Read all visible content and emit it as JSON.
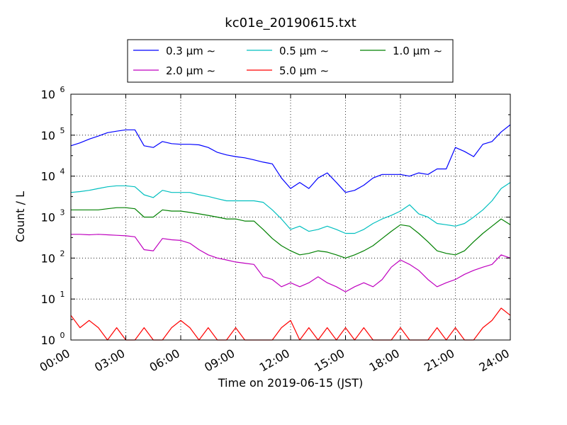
{
  "chart_data": {
    "type": "line",
    "title": "kc01e_20190615.txt",
    "xlabel": "Time on 2019-06-15 (JST)",
    "ylabel": "Count / L",
    "yscale": "log",
    "ylim": [
      1,
      1000000
    ],
    "xlim": [
      "00:00",
      "24:00"
    ],
    "x_ticks": [
      "00:00",
      "03:00",
      "06:00",
      "09:00",
      "12:00",
      "15:00",
      "18:00",
      "21:00",
      "24:00"
    ],
    "y_ticks": [
      {
        "base": "10",
        "exp": "0",
        "value": 1
      },
      {
        "base": "10",
        "exp": "1",
        "value": 10
      },
      {
        "base": "10",
        "exp": "2",
        "value": 100
      },
      {
        "base": "10",
        "exp": "3",
        "value": 1000
      },
      {
        "base": "10",
        "exp": "4",
        "value": 10000
      },
      {
        "base": "10",
        "exp": "5",
        "value": 100000
      },
      {
        "base": "10",
        "exp": "6",
        "value": 1000000
      }
    ],
    "grid": true,
    "legend_position": "top-center",
    "x": [
      "00:00",
      "00:30",
      "01:00",
      "01:30",
      "02:00",
      "02:30",
      "03:00",
      "03:30",
      "04:00",
      "04:30",
      "05:00",
      "05:30",
      "06:00",
      "06:30",
      "07:00",
      "07:30",
      "08:00",
      "08:30",
      "09:00",
      "09:30",
      "10:00",
      "10:30",
      "11:00",
      "11:30",
      "12:00",
      "12:30",
      "13:00",
      "13:30",
      "14:00",
      "14:30",
      "15:00",
      "15:30",
      "16:00",
      "16:30",
      "17:00",
      "17:30",
      "18:00",
      "18:30",
      "19:00",
      "19:30",
      "20:00",
      "20:30",
      "21:00",
      "21:30",
      "22:00",
      "22:30",
      "23:00",
      "23:30",
      "24:00"
    ],
    "series": [
      {
        "name": "0.3 μm ∼",
        "color": "#0000ff",
        "values": [
          55000,
          65000,
          80000,
          95000,
          115000,
          125000,
          135000,
          135000,
          55000,
          50000,
          70000,
          62000,
          60000,
          60000,
          58000,
          50000,
          38000,
          33000,
          30000,
          28000,
          25000,
          22000,
          20000,
          9000,
          5000,
          7000,
          5000,
          9000,
          12000,
          7000,
          4000,
          4500,
          6000,
          9000,
          11000,
          11000,
          11000,
          10000,
          12000,
          11000,
          15000,
          15000,
          50000,
          40000,
          30000,
          60000,
          70000,
          120000,
          180000
        ]
      },
      {
        "name": "0.5 μm ∼",
        "color": "#00bfbf",
        "values": [
          4000,
          4200,
          4500,
          5000,
          5500,
          5800,
          5800,
          5500,
          3500,
          3000,
          4500,
          4000,
          4000,
          4000,
          3500,
          3200,
          2800,
          2500,
          2500,
          2500,
          2500,
          2300,
          1500,
          900,
          500,
          600,
          450,
          500,
          600,
          500,
          400,
          400,
          500,
          700,
          900,
          1100,
          1400,
          2000,
          1200,
          1000,
          700,
          650,
          600,
          700,
          1000,
          1500,
          2500,
          5000,
          7000
        ]
      },
      {
        "name": "1.0 μm ∼",
        "color": "#008000",
        "values": [
          1500,
          1500,
          1500,
          1500,
          1600,
          1700,
          1700,
          1600,
          1000,
          1000,
          1500,
          1400,
          1400,
          1300,
          1200,
          1100,
          1000,
          900,
          900,
          800,
          800,
          500,
          300,
          200,
          150,
          120,
          130,
          150,
          140,
          120,
          100,
          120,
          150,
          200,
          300,
          450,
          650,
          600,
          400,
          250,
          150,
          130,
          120,
          150,
          250,
          400,
          600,
          900,
          650
        ]
      },
      {
        "name": "2.0 μm ∼",
        "color": "#bf00bf",
        "values": [
          380,
          380,
          370,
          380,
          370,
          360,
          350,
          330,
          160,
          150,
          300,
          280,
          270,
          230,
          160,
          120,
          100,
          90,
          80,
          75,
          70,
          35,
          30,
          20,
          25,
          20,
          25,
          35,
          25,
          20,
          15,
          20,
          25,
          20,
          30,
          60,
          90,
          70,
          50,
          30,
          20,
          25,
          30,
          40,
          50,
          60,
          70,
          120,
          100
        ]
      },
      {
        "name": "5.0 μm ∼",
        "color": "#ff0000",
        "values": [
          4,
          2,
          3,
          2,
          1,
          2,
          1,
          1,
          2,
          1,
          1,
          2,
          3,
          2,
          1,
          2,
          1,
          1,
          2,
          1,
          1,
          1,
          1,
          2,
          3,
          1,
          2,
          1,
          2,
          1,
          2,
          1,
          2,
          1,
          1,
          1,
          2,
          1,
          1,
          1,
          2,
          1,
          2,
          1,
          1,
          2,
          3,
          6,
          4
        ]
      }
    ]
  }
}
